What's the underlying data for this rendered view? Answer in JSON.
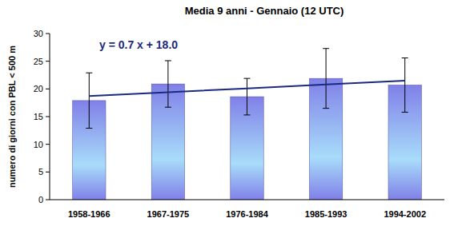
{
  "chart_data": {
    "type": "bar",
    "title": "Media 9 anni - Gennaio (12 UTC)",
    "y_label": "numero di giorni con PBL < 500 m",
    "categories": [
      "1958-1966",
      "1967-1975",
      "1976-1984",
      "1985-1993",
      "1994-2002"
    ],
    "series": [
      {
        "type": "bar",
        "color": "#8080e8",
        "values": [
          17.9,
          20.9,
          18.6,
          21.9,
          20.7
        ],
        "errors": [
          5.0,
          4.2,
          3.3,
          5.4,
          4.9
        ]
      },
      {
        "type": "line",
        "color": "#1a2a80",
        "values": [
          18.7,
          19.4,
          20.1,
          20.8,
          21.5
        ]
      }
    ],
    "annotations": [
      "y = 0.7 x + 18.0"
    ],
    "ylim": [
      0,
      30
    ],
    "yticks": [
      0,
      5,
      10,
      15,
      20,
      25,
      30
    ],
    "grid": false
  }
}
